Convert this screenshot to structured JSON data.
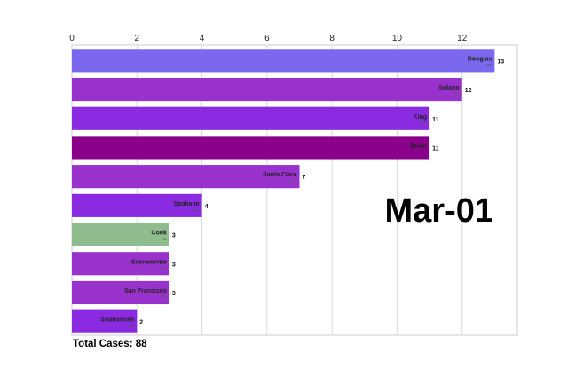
{
  "chart_data": {
    "type": "bar",
    "orientation": "horizontal",
    "date": "Mar-01",
    "total_cases_label": "Total Cases: 88",
    "xlim": [
      0,
      13.7
    ],
    "xticks": [
      0,
      2,
      4,
      6,
      8,
      10,
      12
    ],
    "grid": true,
    "bars": [
      {
        "county": "Douglas",
        "state": "NE",
        "value": 13,
        "color": "#7b68ee"
      },
      {
        "county": "Solano",
        "state": "CA",
        "value": 12,
        "color": "#9932cc"
      },
      {
        "county": "King",
        "state": "WA",
        "value": 11,
        "color": "#8a2be2"
      },
      {
        "county": "Bexar",
        "state": "",
        "value": 11,
        "color": "#8b008b"
      },
      {
        "county": "Santa Clara",
        "state": "CA",
        "value": 7,
        "color": "#9932cc"
      },
      {
        "county": "Spokane",
        "state": "WA",
        "value": 4,
        "color": "#8a2be2"
      },
      {
        "county": "Cook",
        "state": "IL",
        "value": 3,
        "color": "#8fbc8f"
      },
      {
        "county": "Sacramento",
        "state": "CA",
        "value": 3,
        "color": "#9932cc"
      },
      {
        "county": "San Francisco",
        "state": "CA",
        "value": 3,
        "color": "#9932cc"
      },
      {
        "county": "Snohomish",
        "state": "WA",
        "value": 2,
        "color": "#8a2be2"
      }
    ]
  }
}
